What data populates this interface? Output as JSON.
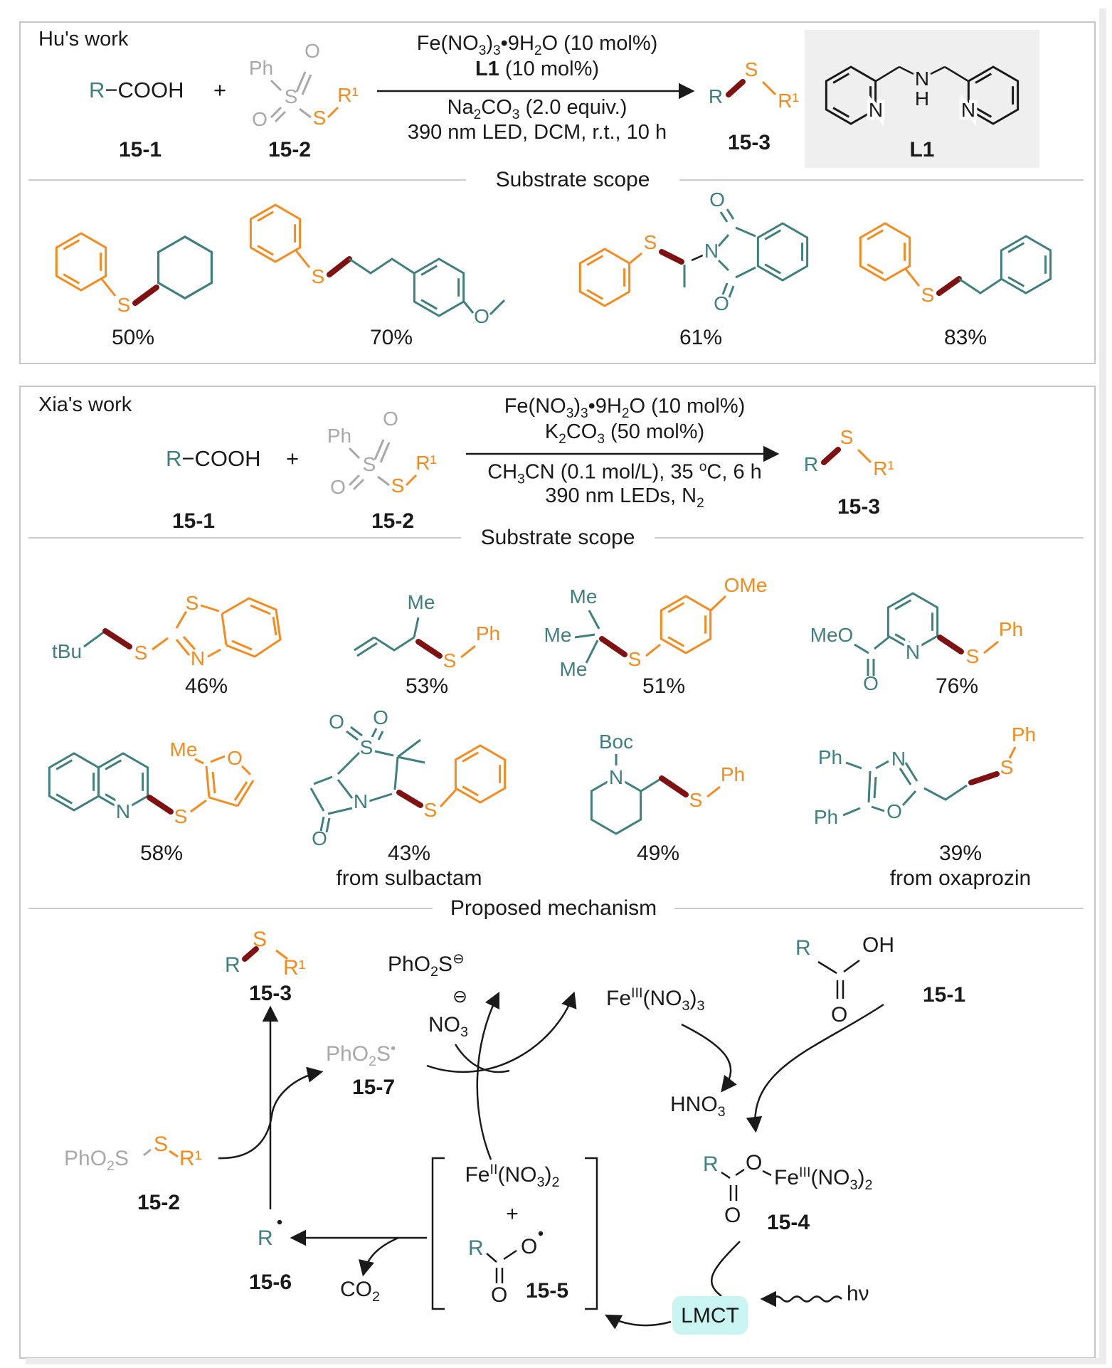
{
  "atoms": {
    "R": "R",
    "R1": "R¹",
    "S": "S",
    "N": "N",
    "O": "O",
    "H": "H",
    "OH": "OH",
    "Ph": "Ph",
    "Me": "Me",
    "OMe": "OMe",
    "MeO": "MeO",
    "tBu": "tBu",
    "Boc": "Boc"
  },
  "labels": {
    "l151": "15-1",
    "l152": "15-2",
    "l153": "15-3",
    "l154": "15-4",
    "l155": "15-5",
    "l156": "15-6",
    "l157": "15-7"
  },
  "hu": {
    "title": "Hu's work",
    "acid_r": "R",
    "acid_rest": "−COOH",
    "plus": "+",
    "cond_above_1": "Fe(NO_3_)_3_•9H_2_O (10 mol%)",
    "cond_above_2_bold": "L1",
    "cond_above_2_rest": " (10 mol%)",
    "cond_below_1": "Na_2_CO_3_ (2.0 equiv.)",
    "cond_below_2": "390 nm LED, DCM, r.t., 10 h",
    "ligand_label": "L1",
    "scope_title": "Substrate scope",
    "yields": [
      "50%",
      "70%",
      "61%",
      "83%"
    ]
  },
  "xia": {
    "title": "Xia's work",
    "acid_r": "R",
    "acid_rest": "−COOH",
    "plus": "+",
    "cond_above_1": "Fe(NO_3_)_3_•9H_2_O (10 mol%)",
    "cond_above_2": "K_2_CO_3_ (50 mol%)",
    "cond_below_1": "CH_3_CN (0.1 mol/L), 35 ^o^C, 6 h",
    "cond_below_2": "390 nm LEDs, N_2_",
    "scope_title": "Substrate scope",
    "yields": [
      "46%",
      "53%",
      "51%",
      "76%",
      "58%",
      "43%",
      "49%",
      "39%"
    ],
    "note_sulbactam": "from sulbactam",
    "note_oxaprozin": "from oxaprozin"
  },
  "mechanism": {
    "title": "Proposed mechanism",
    "fe3_no3_3": "Fe^III^(NO_3_)_3_",
    "fe3_no3_2": "Fe^III^(NO_3_)_2_",
    "fe2_no3_2": "Fe^II^(NO_3_)_2_",
    "phso2_anion": "PhO_2_S^⊖^",
    "phso2_radical": "PhO_2_S^•^",
    "phso2": "PhO_2_S",
    "no3": "NO_3_",
    "minus_circle": "⊖",
    "hno3": "HNO_3_",
    "co2": "CO_2_",
    "plus": "+",
    "lmct": "LMCT",
    "hv": "hν"
  },
  "colors": {
    "teal": "#3f7f7f",
    "orange": "#f58a1d",
    "dark_red_bond": "#7e1111",
    "gray": "#a8a8a8",
    "lmct_bg": "#c9f4f2",
    "panel_border": "#c6c6c6"
  }
}
